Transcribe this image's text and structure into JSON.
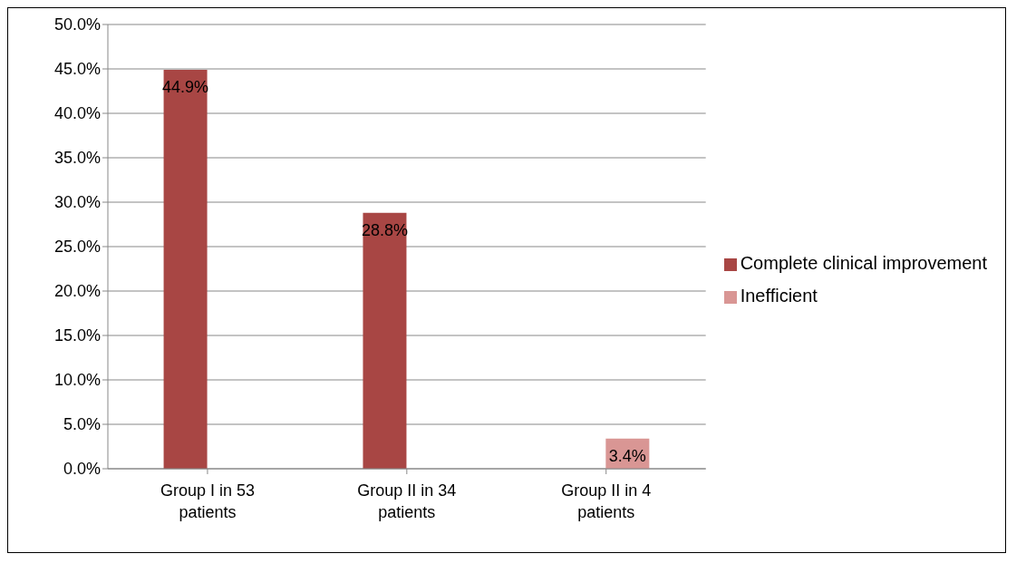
{
  "chart_data": {
    "type": "bar",
    "categories": [
      "Group I in 53 patients",
      "Group II in 34 patients",
      "Group II in 4 patients"
    ],
    "series": [
      {
        "name": "Complete clinical improvement",
        "color": "#a84644",
        "values": [
          44.9,
          28.8,
          null
        ],
        "value_labels": [
          "44.9%",
          "28.8%",
          null
        ]
      },
      {
        "name": "Inefficient",
        "color": "#d99694",
        "values": [
          null,
          null,
          3.4
        ],
        "value_labels": [
          null,
          null,
          "3.4%"
        ]
      }
    ],
    "ylim": [
      0,
      50
    ],
    "yticks": [
      {
        "value": 0,
        "label": "0.0%"
      },
      {
        "value": 5,
        "label": "5.0%"
      },
      {
        "value": 10,
        "label": "10.0%"
      },
      {
        "value": 15,
        "label": "15.0%"
      },
      {
        "value": 20,
        "label": "20.0%"
      },
      {
        "value": 25,
        "label": "25.0%"
      },
      {
        "value": 30,
        "label": "30.0%"
      },
      {
        "value": 35,
        "label": "35.0%"
      },
      {
        "value": 40,
        "label": "40.0%"
      },
      {
        "value": 45,
        "label": "45.0%"
      },
      {
        "value": 50,
        "label": "50.0%"
      }
    ],
    "grid": "y",
    "legend": "right"
  }
}
